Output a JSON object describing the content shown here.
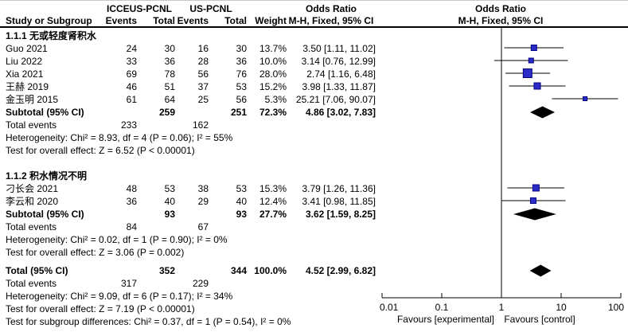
{
  "figure": {
    "columns": {
      "group1": "ICCEUS-PCNL",
      "group2": "US-PCNL",
      "study": "Study or Subgroup",
      "events": "Events",
      "total": "Total",
      "weight": "Weight",
      "or_title": "Odds Ratio",
      "or_method": "M-H, Fixed, 95% CI"
    },
    "labels": {
      "total_events": "Total events",
      "subtotal": "Subtotal (95% CI)",
      "total": "Total (95% CI)"
    }
  },
  "chart_data": {
    "type": "forest",
    "effect_measure": "Odds Ratio",
    "method": "M-H, Fixed, 95% CI",
    "axis": {
      "scale": "log",
      "ticks": [
        "0.01",
        "0.1",
        "1",
        "10",
        "100"
      ],
      "tick_values": [
        0.01,
        0.1,
        1,
        10,
        100
      ],
      "favours_left": "Favours [experimental]",
      "favours_right": "Favours [control]"
    },
    "marker_color": "#2b2bc8",
    "marker_border": "#000080",
    "subgroups": [
      {
        "label": "1.1.1 无或轻度肾积水",
        "studies": [
          {
            "name": "Guo 2021",
            "e1": "24",
            "t1": "30",
            "e2": "16",
            "t2": "30",
            "weight": "13.7%",
            "weight_value": 13.7,
            "or": 3.5,
            "ci_low": 1.11,
            "ci_high": 11.02,
            "or_text": "3.50 [1.11, 11.02]"
          },
          {
            "name": "Liu 2022",
            "e1": "33",
            "t1": "36",
            "e2": "28",
            "t2": "36",
            "weight": "10.0%",
            "weight_value": 10.0,
            "or": 3.14,
            "ci_low": 0.76,
            "ci_high": 12.99,
            "or_text": "3.14 [0.76, 12.99]"
          },
          {
            "name": "Xia 2021",
            "e1": "69",
            "t1": "78",
            "e2": "56",
            "t2": "76",
            "weight": "28.0%",
            "weight_value": 28.0,
            "or": 2.74,
            "ci_low": 1.16,
            "ci_high": 6.48,
            "or_text": "2.74 [1.16, 6.48]"
          },
          {
            "name": "王赫 2019",
            "e1": "46",
            "t1": "51",
            "e2": "37",
            "t2": "53",
            "weight": "15.2%",
            "weight_value": 15.2,
            "or": 3.98,
            "ci_low": 1.33,
            "ci_high": 11.87,
            "or_text": "3.98 [1.33, 11.87]"
          },
          {
            "name": "金玉明 2015",
            "e1": "61",
            "t1": "64",
            "e2": "25",
            "t2": "56",
            "weight": "5.3%",
            "weight_value": 5.3,
            "or": 25.21,
            "ci_low": 7.06,
            "ci_high": 90.07,
            "or_text": "25.21 [7.06, 90.07]"
          }
        ],
        "subtotal": {
          "t1": "259",
          "t2": "251",
          "weight": "72.3%",
          "or": 4.86,
          "ci_low": 3.02,
          "ci_high": 7.83,
          "or_text": "4.86 [3.02, 7.83]"
        },
        "total_events": {
          "e1": "233",
          "e2": "162"
        },
        "heterogeneity": "Heterogeneity: Chi² = 8.93, df = 4 (P = 0.06); I² = 55%",
        "overall_effect": "Test for overall effect: Z = 6.52 (P < 0.00001)"
      },
      {
        "label": "1.1.2 积水情况不明",
        "studies": [
          {
            "name": "刁长会 2021",
            "e1": "48",
            "t1": "53",
            "e2": "38",
            "t2": "53",
            "weight": "15.3%",
            "weight_value": 15.3,
            "or": 3.79,
            "ci_low": 1.26,
            "ci_high": 11.36,
            "or_text": "3.79 [1.26, 11.36]"
          },
          {
            "name": "李云和 2020",
            "e1": "36",
            "t1": "40",
            "e2": "29",
            "t2": "40",
            "weight": "12.4%",
            "weight_value": 12.4,
            "or": 3.41,
            "ci_low": 0.98,
            "ci_high": 11.85,
            "or_text": "3.41 [0.98, 11.85]"
          }
        ],
        "subtotal": {
          "t1": "93",
          "t2": "93",
          "weight": "27.7%",
          "or": 3.62,
          "ci_low": 1.59,
          "ci_high": 8.25,
          "or_text": "3.62 [1.59, 8.25]"
        },
        "total_events": {
          "e1": "84",
          "e2": "67"
        },
        "heterogeneity": "Heterogeneity: Chi² = 0.02, df = 1 (P = 0.90); I² = 0%",
        "overall_effect": "Test for overall effect: Z = 3.06 (P = 0.002)"
      }
    ],
    "total": {
      "t1": "352",
      "t2": "344",
      "weight": "100.0%",
      "or": 4.52,
      "ci_low": 2.99,
      "ci_high": 6.82,
      "or_text": "4.52 [2.99, 6.82]",
      "total_events": {
        "e1": "317",
        "e2": "229"
      },
      "heterogeneity": "Heterogeneity: Chi² = 9.09, df = 6 (P = 0.17); I² = 34%",
      "overall_effect": "Test for overall effect: Z = 7.19 (P < 0.00001)",
      "subgroup_differences": "Test for subgroup differences: Chi² = 0.37, df = 1 (P = 0.54), I² = 0%"
    }
  }
}
